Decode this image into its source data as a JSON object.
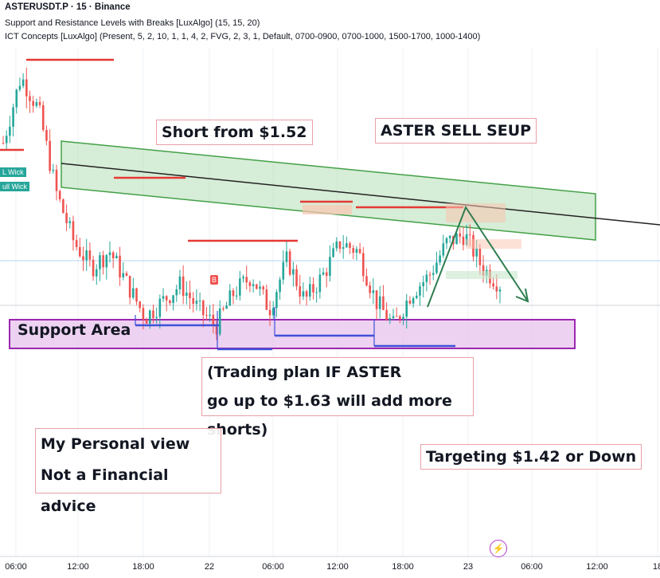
{
  "header": {
    "symbol_line": "ASTERUSDT.P · 15 · Binance",
    "indicator_1": "Support and Resistance Levels with Breaks [LuxAlgo] (15, 15, 20)",
    "indicator_2": "ICT Concepts [LuxAlgo] (Present, 5, 2, 10, 1, 1, 4, 2, FVG, 2, 3, 1, Default, 0700-0900, 0700-1000, 1500-1700, 1000-1400)"
  },
  "annotations": {
    "short_from": "Short from $1.52",
    "setup": "ASTER SELL SEUP",
    "support_area": "Support Area",
    "plan_line1": "(Trading plan IF ASTER",
    "plan_line2": "go up to $1.63 will add more shorts)",
    "view_line1": "My Personal view",
    "view_line2": "Not a Financial advice",
    "target": "Targeting $1.42 or Down",
    "wick_1": "L Wick",
    "wick_2": "ull Wick",
    "marker_b": "B"
  },
  "colors": {
    "up": "#26a69a",
    "down": "#ef5350",
    "resistance": "#e53935",
    "support": "#3f51d8",
    "channel": "#66bb6a",
    "support_zone": "#9c27b0"
  },
  "chart_data": {
    "type": "candlestick",
    "xaxis_ticks": [
      "06:00",
      "12:00",
      "18:00",
      "22",
      "06:00",
      "12:00",
      "18:00",
      "23",
      "06:00",
      "12:00",
      "18"
    ],
    "close_path_approx": [
      1.62,
      1.7,
      1.66,
      1.56,
      1.5,
      1.47,
      1.49,
      1.45,
      1.41,
      1.43,
      1.45,
      1.42,
      1.4,
      1.44,
      1.46,
      1.42,
      1.48,
      1.43,
      1.46,
      1.5,
      1.49,
      1.43,
      1.4,
      1.44,
      1.46,
      1.5,
      1.51,
      1.47,
      1.45
    ],
    "levels": {
      "entry_short": 1.52,
      "add_shorts": 1.63,
      "target": 1.42
    }
  }
}
